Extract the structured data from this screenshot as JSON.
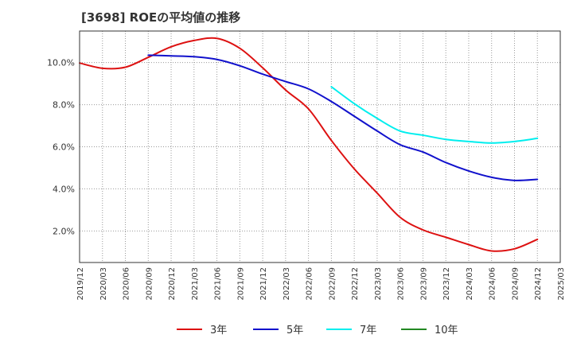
{
  "title": "[3698]  ROEの平均値の推移",
  "chart_data": {
    "type": "line",
    "title": "[3698]  ROEの平均値の推移",
    "xlabel": "",
    "ylabel": "",
    "x": [
      "2019/12",
      "2020/03",
      "2020/06",
      "2020/09",
      "2020/12",
      "2021/03",
      "2021/06",
      "2021/09",
      "2021/12",
      "2022/03",
      "2022/06",
      "2022/09",
      "2022/12",
      "2023/03",
      "2023/06",
      "2023/09",
      "2023/12",
      "2024/03",
      "2024/06",
      "2024/09",
      "2024/12",
      "2025/03"
    ],
    "x_ticks": [
      "2019/12",
      "2020/03",
      "2020/06",
      "2020/09",
      "2020/12",
      "2021/03",
      "2021/06",
      "2021/09",
      "2021/12",
      "2022/03",
      "2022/06",
      "2022/09",
      "2022/12",
      "2023/03",
      "2023/06",
      "2023/09",
      "2023/12",
      "2024/03",
      "2024/06",
      "2024/09",
      "2024/12",
      "2025/03"
    ],
    "y_ticks": [
      2.0,
      4.0,
      6.0,
      8.0,
      10.0
    ],
    "y_tick_labels": [
      "2.0%",
      "4.0%",
      "6.0%",
      "8.0%",
      "10.0%"
    ],
    "ylim": [
      0.5,
      11.5
    ],
    "grid": true,
    "legend_position": "bottom",
    "series": [
      {
        "name": "3年",
        "color": "#dd1111",
        "values": [
          9.98,
          9.73,
          9.78,
          10.25,
          10.75,
          11.05,
          11.15,
          10.68,
          9.75,
          8.7,
          7.8,
          6.3,
          4.95,
          3.8,
          2.65,
          2.05,
          1.7,
          1.35,
          1.05,
          1.15,
          1.6,
          null
        ]
      },
      {
        "name": "5年",
        "color": "#1111cc",
        "values": [
          null,
          null,
          null,
          10.35,
          10.32,
          10.28,
          10.15,
          9.85,
          9.45,
          9.1,
          8.75,
          8.15,
          7.45,
          6.75,
          6.1,
          5.75,
          5.25,
          4.85,
          4.55,
          4.4,
          4.45,
          null
        ]
      },
      {
        "name": "7年",
        "color": "#00eeee",
        "values": [
          null,
          null,
          null,
          null,
          null,
          null,
          null,
          null,
          null,
          null,
          null,
          8.85,
          8.05,
          7.35,
          6.75,
          6.55,
          6.35,
          6.25,
          6.18,
          6.25,
          6.4,
          null
        ]
      },
      {
        "name": "10年",
        "color": "#228822",
        "values": [
          null,
          null,
          null,
          null,
          null,
          null,
          null,
          null,
          null,
          null,
          null,
          null,
          null,
          null,
          null,
          null,
          null,
          null,
          null,
          null,
          null,
          null
        ]
      }
    ]
  }
}
